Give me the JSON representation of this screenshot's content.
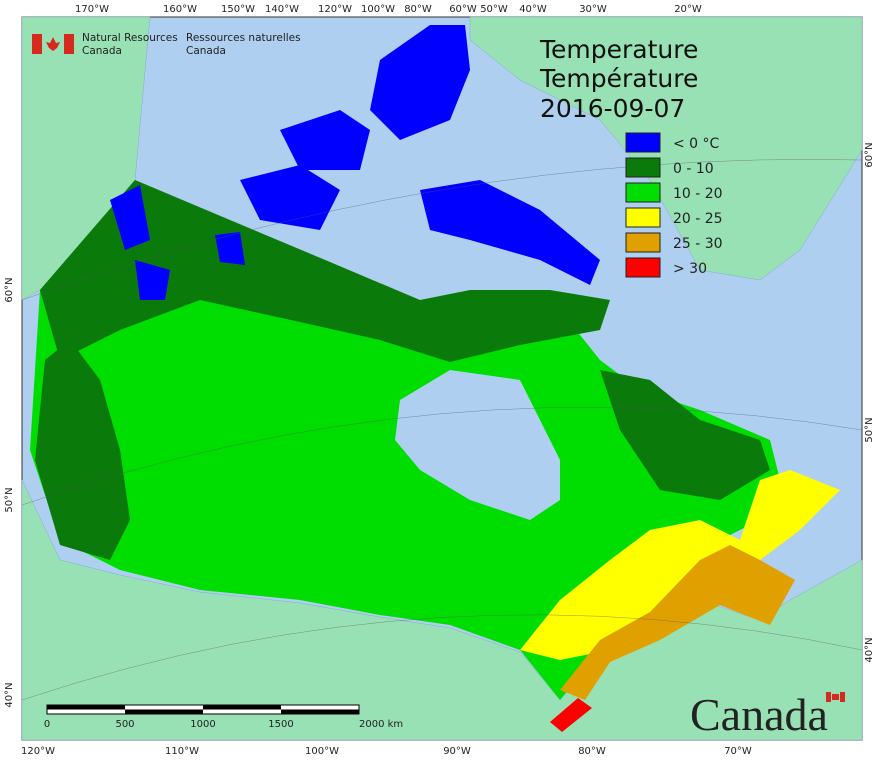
{
  "header": {
    "org_en": [
      "Natural Resources",
      "Canada"
    ],
    "org_fr": [
      "Ressources naturelles",
      "Canada"
    ]
  },
  "title": {
    "line1": "Temperature",
    "line2": "Température",
    "date": "2016-09-07"
  },
  "legend": [
    {
      "label": "< 0 °C",
      "color": "#0000ff"
    },
    {
      "label": "0 - 10",
      "color": "#0a7a0a"
    },
    {
      "label": "10 - 20",
      "color": "#00dd00"
    },
    {
      "label": "20 - 25",
      "color": "#ffff00"
    },
    {
      "label": "25 - 30",
      "color": "#e0a000"
    },
    {
      "label": "> 30",
      "color": "#ff0000"
    }
  ],
  "graticule": {
    "top": [
      "170°W",
      "160°W",
      "150°W",
      "140°W",
      "120°W",
      "100°W",
      "80°W",
      "60°W",
      "50°W",
      "40°W",
      "30°W",
      "20°W"
    ],
    "bottom": [
      "120°W",
      "110°W",
      "100°W",
      "90°W",
      "80°W",
      "70°W"
    ],
    "left": [
      "60°N",
      "50°N",
      "40°N"
    ],
    "right": [
      "60°N",
      "50°N",
      "40°N"
    ]
  },
  "scale_bar": {
    "labels": [
      "0",
      "500",
      "1000",
      "1500",
      "2000 km"
    ]
  },
  "wordmark": "Canada"
}
